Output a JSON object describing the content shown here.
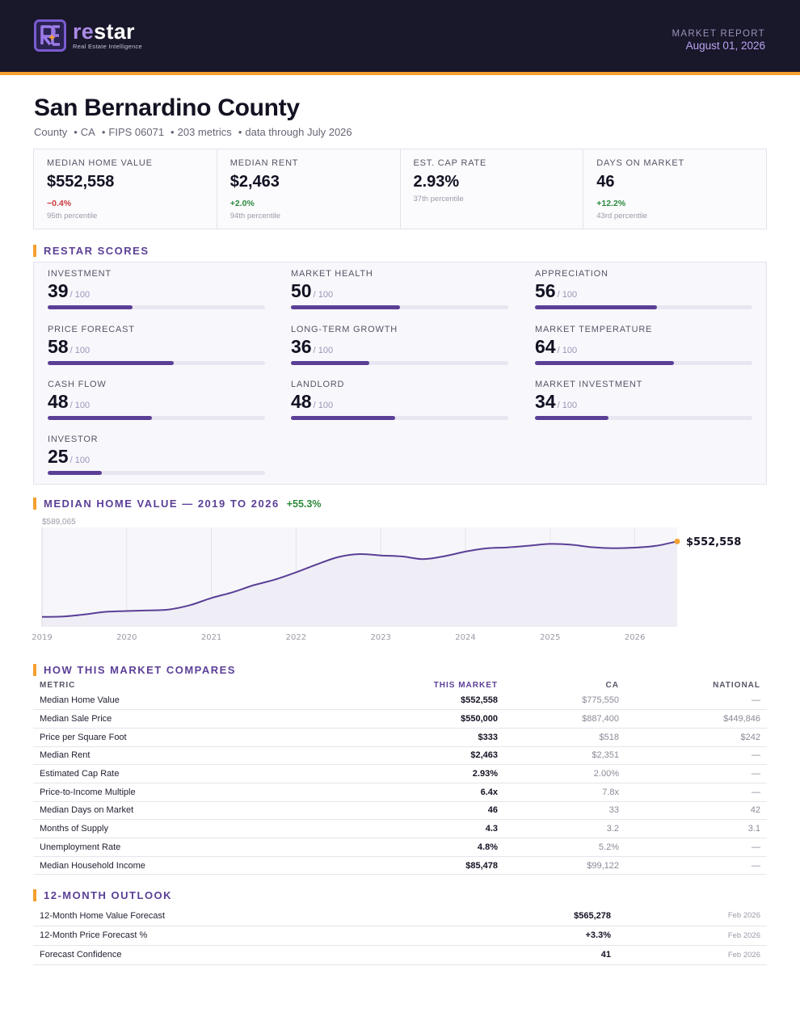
{
  "header": {
    "brand_prefix": "re",
    "brand_suffix": "star",
    "tagline": "Real Estate Intelligence",
    "report_label": "MARKET REPORT",
    "report_date": "August 01, 2026",
    "accent_color": "#f5a030",
    "brand_color": "#5b3f96"
  },
  "title": {
    "name": "San Bernardino County",
    "meta": [
      "County",
      "CA",
      "FIPS 06071",
      "203 metrics",
      "data through July 2026"
    ]
  },
  "kpis": [
    {
      "label": "MEDIAN HOME VALUE",
      "value": "$552,558",
      "change": "−0.4%",
      "change_dir": "neg",
      "percentile": "95th percentile"
    },
    {
      "label": "MEDIAN RENT",
      "value": "$2,463",
      "change": "+2.0%",
      "change_dir": "pos",
      "percentile": "94th percentile"
    },
    {
      "label": "EST. CAP RATE",
      "value": "2.93%",
      "change": "",
      "change_dir": "",
      "percentile": "37th percentile"
    },
    {
      "label": "DAYS ON MARKET",
      "value": "46",
      "change": "+12.2%",
      "change_dir": "pos",
      "percentile": "43rd percentile"
    }
  ],
  "scores_section": {
    "title": "RESTAR SCORES",
    "max_label": "/ 100",
    "items": [
      {
        "label": "INVESTMENT",
        "value": 39
      },
      {
        "label": "MARKET HEALTH",
        "value": 50
      },
      {
        "label": "APPRECIATION",
        "value": 56
      },
      {
        "label": "PRICE FORECAST",
        "value": 58
      },
      {
        "label": "LONG-TERM GROWTH",
        "value": 36
      },
      {
        "label": "MARKET TEMPERATURE",
        "value": 64
      },
      {
        "label": "CASH FLOW",
        "value": 48
      },
      {
        "label": "LANDLORD",
        "value": 48
      },
      {
        "label": "MARKET INVESTMENT",
        "value": 34
      },
      {
        "label": "INVESTOR",
        "value": 25
      }
    ]
  },
  "chart_section": {
    "title": "MEDIAN HOME VALUE — 2019 TO 2026",
    "change": "+55.3%"
  },
  "chart_data": {
    "type": "area",
    "title": "MEDIAN HOME VALUE — 2019 TO 2026",
    "x": [
      2019.0,
      2019.25,
      2019.5,
      2019.75,
      2020.0,
      2020.25,
      2020.5,
      2020.75,
      2021.0,
      2021.25,
      2021.5,
      2021.75,
      2022.0,
      2022.25,
      2022.5,
      2022.75,
      2023.0,
      2023.25,
      2023.5,
      2023.75,
      2024.0,
      2024.25,
      2024.5,
      2024.75,
      2025.0,
      2025.25,
      2025.5,
      2025.75,
      2026.0,
      2026.25,
      2026.5
    ],
    "values": [
      355800,
      356800,
      362000,
      369000,
      371000,
      372500,
      375000,
      386500,
      405000,
      420000,
      438500,
      453000,
      472000,
      493000,
      512000,
      519500,
      516000,
      513500,
      506500,
      514000,
      526000,
      534500,
      537000,
      541500,
      546000,
      544000,
      537500,
      535000,
      536500,
      541000,
      552558
    ],
    "ymax_label": "$589,065",
    "ylim": [
      330000,
      589065
    ],
    "xlim": [
      2019.0,
      2026.5
    ],
    "x_ticks": [
      "2019",
      "2020",
      "2021",
      "2022",
      "2023",
      "2024",
      "2025",
      "2026"
    ],
    "end_label": "$552,558",
    "line_color": "#5b3f96",
    "end_marker_color": "#f5a030"
  },
  "compare": {
    "title": "HOW THIS MARKET COMPARES",
    "columns": [
      "METRIC",
      "THIS MARKET",
      "CA",
      "NATIONAL"
    ],
    "rows": [
      [
        "Median Home Value",
        "$552,558",
        "$775,550",
        "—"
      ],
      [
        "Median Sale Price",
        "$550,000",
        "$887,400",
        "$449,846"
      ],
      [
        "Price per Square Foot",
        "$333",
        "$518",
        "$242"
      ],
      [
        "Median Rent",
        "$2,463",
        "$2,351",
        "—"
      ],
      [
        "Estimated Cap Rate",
        "2.93%",
        "2.00%",
        "—"
      ],
      [
        "Price-to-Income Multiple",
        "6.4x",
        "7.8x",
        "—"
      ],
      [
        "Median Days on Market",
        "46",
        "33",
        "42"
      ],
      [
        "Months of Supply",
        "4.3",
        "3.2",
        "3.1"
      ],
      [
        "Unemployment Rate",
        "4.8%",
        "5.2%",
        "—"
      ],
      [
        "Median Household Income",
        "$85,478",
        "$99,122",
        "—"
      ]
    ]
  },
  "outlook": {
    "title": "12-MONTH OUTLOOK",
    "rows": [
      [
        "12-Month Home Value Forecast",
        "$565,278",
        "Feb 2026"
      ],
      [
        "12-Month Price Forecast %",
        "+3.3%",
        "Feb 2026"
      ],
      [
        "Forecast Confidence",
        "41",
        "Feb 2026"
      ]
    ]
  }
}
